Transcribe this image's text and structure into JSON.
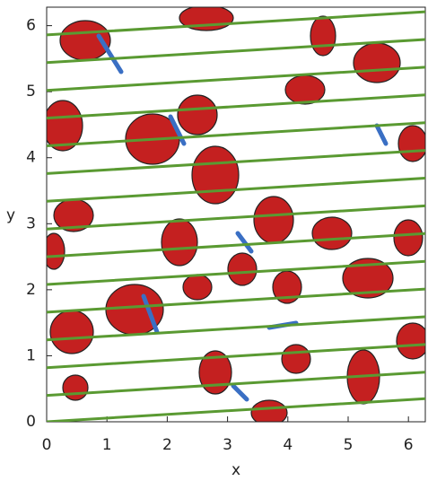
{
  "chart_data": {
    "type": "line",
    "x_label": "x",
    "y_label": "y",
    "xlim": [
      0,
      6.28
    ],
    "ylim": [
      0,
      6.28
    ],
    "xticks": [
      0,
      1,
      2,
      3,
      4,
      5,
      6
    ],
    "yticks": [
      0,
      1,
      2,
      3,
      4,
      5,
      6
    ],
    "color": "#5a9a32",
    "x": [
      0,
      6.28,
      null,
      0,
      6.28,
      null,
      0,
      6.28,
      null,
      0,
      6.28,
      null,
      0,
      6.28,
      null,
      0,
      6.28,
      null,
      0,
      6.28,
      null,
      0,
      6.28,
      null,
      0,
      6.28,
      null,
      0,
      6.28,
      null,
      0,
      6.28,
      null,
      0,
      6.28,
      null,
      0,
      6.28,
      null,
      0,
      6.28,
      null,
      0,
      6.28
    ],
    "values": [
      0.0,
      0.35,
      null,
      0.4,
      0.75,
      null,
      0.82,
      1.17,
      null,
      1.24,
      1.59,
      null,
      1.66,
      2.01,
      null,
      2.08,
      2.43,
      null,
      2.5,
      2.85,
      null,
      2.92,
      3.27,
      null,
      3.34,
      3.69,
      null,
      3.76,
      4.11,
      null,
      4.18,
      4.53,
      null,
      4.6,
      4.95,
      null,
      5.02,
      5.37,
      null,
      5.44,
      5.79,
      null,
      5.86,
      6.21
    ]
  }
}
